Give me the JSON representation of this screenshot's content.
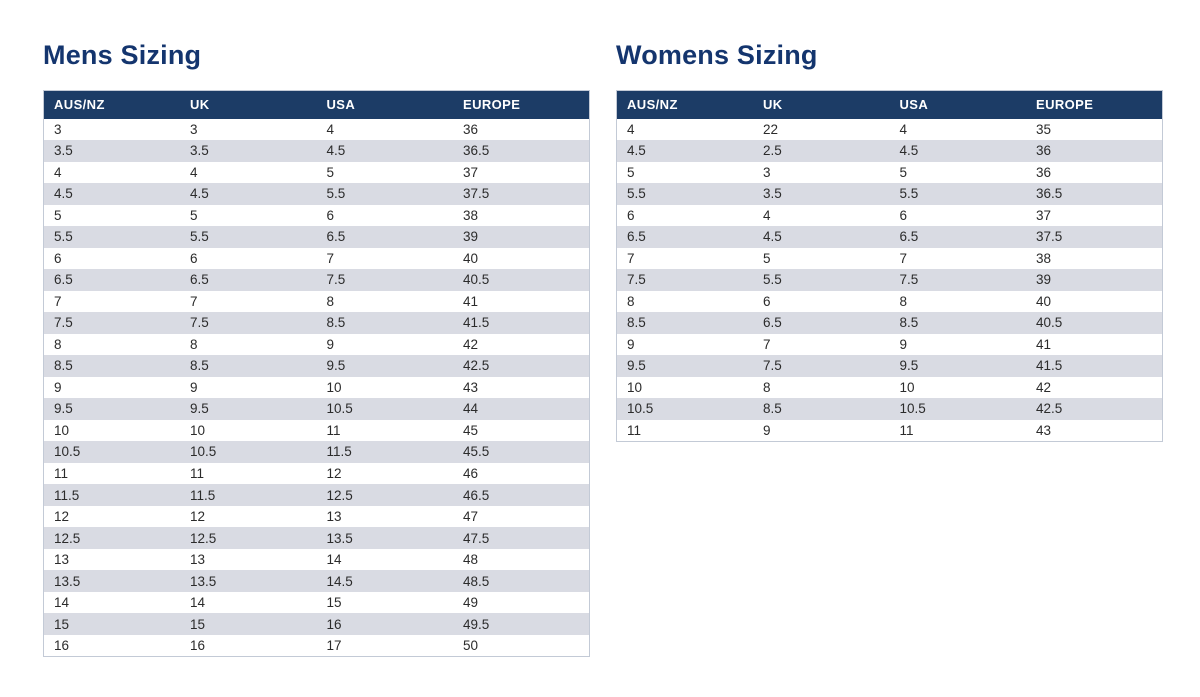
{
  "colors": {
    "header_bg": "#1c3c66",
    "header_text": "#ffffff",
    "title_color": "#14356e",
    "stripe": "#d9dbe3",
    "border": "#c3cad6",
    "cell_text": "#2b2b2b",
    "page_bg": "#ffffff"
  },
  "mens": {
    "title": "Mens Sizing",
    "columns": [
      "AUS/NZ",
      "UK",
      "USA",
      "EUROPE"
    ],
    "rows": [
      [
        "3",
        "3",
        "4",
        "36"
      ],
      [
        "3.5",
        "3.5",
        "4.5",
        "36.5"
      ],
      [
        "4",
        "4",
        "5",
        "37"
      ],
      [
        "4.5",
        "4.5",
        "5.5",
        "37.5"
      ],
      [
        "5",
        "5",
        "6",
        "38"
      ],
      [
        "5.5",
        "5.5",
        "6.5",
        "39"
      ],
      [
        "6",
        "6",
        "7",
        "40"
      ],
      [
        "6.5",
        "6.5",
        "7.5",
        "40.5"
      ],
      [
        "7",
        "7",
        "8",
        "41"
      ],
      [
        "7.5",
        "7.5",
        "8.5",
        "41.5"
      ],
      [
        "8",
        "8",
        "9",
        "42"
      ],
      [
        "8.5",
        "8.5",
        "9.5",
        "42.5"
      ],
      [
        "9",
        "9",
        "10",
        "43"
      ],
      [
        "9.5",
        "9.5",
        "10.5",
        "44"
      ],
      [
        "10",
        "10",
        "11",
        "45"
      ],
      [
        "10.5",
        "10.5",
        "11.5",
        "45.5"
      ],
      [
        "11",
        "11",
        "12",
        "46"
      ],
      [
        "11.5",
        "11.5",
        "12.5",
        "46.5"
      ],
      [
        "12",
        "12",
        "13",
        "47"
      ],
      [
        "12.5",
        "12.5",
        "13.5",
        "47.5"
      ],
      [
        "13",
        "13",
        "14",
        "48"
      ],
      [
        "13.5",
        "13.5",
        "14.5",
        "48.5"
      ],
      [
        "14",
        "14",
        "15",
        "49"
      ],
      [
        "15",
        "15",
        "16",
        "49.5"
      ],
      [
        "16",
        "16",
        "17",
        "50"
      ]
    ]
  },
  "womens": {
    "title": "Womens Sizing",
    "columns": [
      "AUS/NZ",
      "UK",
      "USA",
      "EUROPE"
    ],
    "rows": [
      [
        "4",
        "22",
        "4",
        "35"
      ],
      [
        "4.5",
        "2.5",
        "4.5",
        "36"
      ],
      [
        "5",
        "3",
        "5",
        "36"
      ],
      [
        "5.5",
        "3.5",
        "5.5",
        "36.5"
      ],
      [
        "6",
        "4",
        "6",
        "37"
      ],
      [
        "6.5",
        "4.5",
        "6.5",
        "37.5"
      ],
      [
        "7",
        "5",
        "7",
        "38"
      ],
      [
        "7.5",
        "5.5",
        "7.5",
        "39"
      ],
      [
        "8",
        "6",
        "8",
        "40"
      ],
      [
        "8.5",
        "6.5",
        "8.5",
        "40.5"
      ],
      [
        "9",
        "7",
        "9",
        "41"
      ],
      [
        "9.5",
        "7.5",
        "9.5",
        "41.5"
      ],
      [
        "10",
        "8",
        "10",
        "42"
      ],
      [
        "10.5",
        "8.5",
        "10.5",
        "42.5"
      ],
      [
        "11",
        "9",
        "11",
        "43"
      ]
    ]
  }
}
